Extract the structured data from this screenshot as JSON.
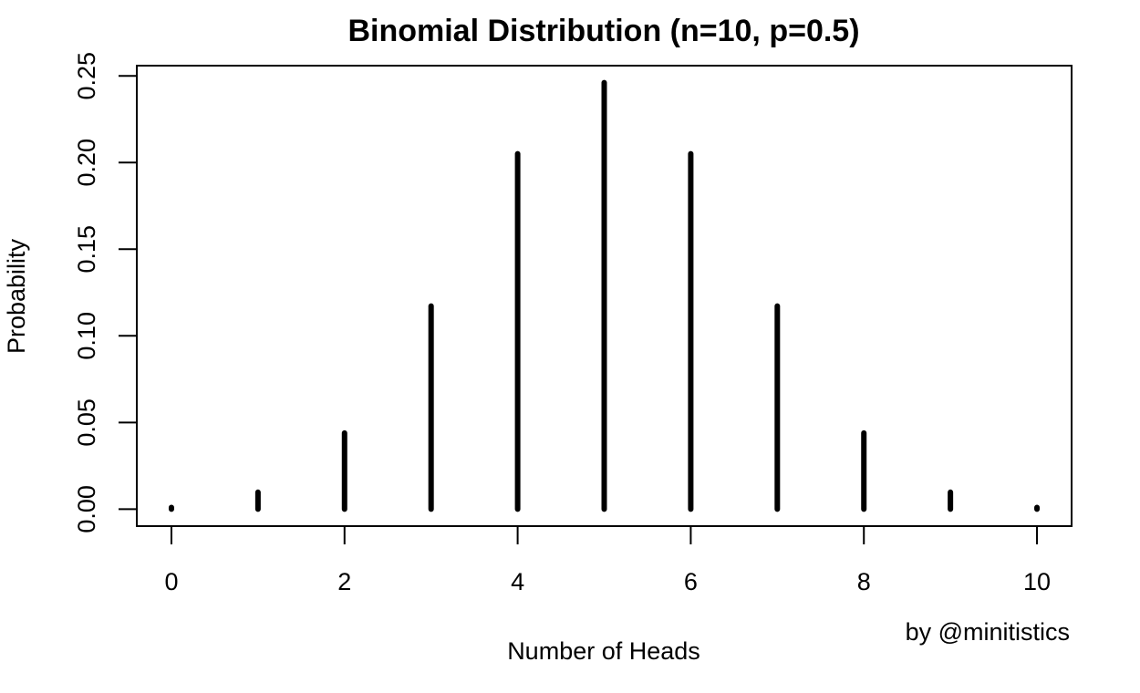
{
  "chart_data": {
    "type": "bar",
    "style": "spike",
    "title": "Binomial Distribution (n=10, p=0.5)",
    "xlabel": "Number of Heads",
    "ylabel": "Probability",
    "x": [
      0,
      1,
      2,
      3,
      4,
      5,
      6,
      7,
      8,
      9,
      10
    ],
    "values": [
      0.000977,
      0.009766,
      0.043945,
      0.117188,
      0.205078,
      0.246094,
      0.205078,
      0.117188,
      0.043945,
      0.009766,
      0.000977
    ],
    "xlim": [
      -0.4,
      10.4
    ],
    "ylim": [
      -0.0098,
      0.2559
    ],
    "xticks": [
      0,
      2,
      4,
      6,
      8,
      10
    ],
    "xtick_labels": [
      "0",
      "2",
      "4",
      "6",
      "8",
      "10"
    ],
    "yticks": [
      0,
      0.05,
      0.1,
      0.15,
      0.2,
      0.25
    ],
    "ytick_labels": [
      "0.00",
      "0.05",
      "0.10",
      "0.15",
      "0.20",
      "0.25"
    ],
    "grid": false,
    "legend": "none",
    "bar_color": "#000000"
  },
  "credit": "by @minitistics"
}
